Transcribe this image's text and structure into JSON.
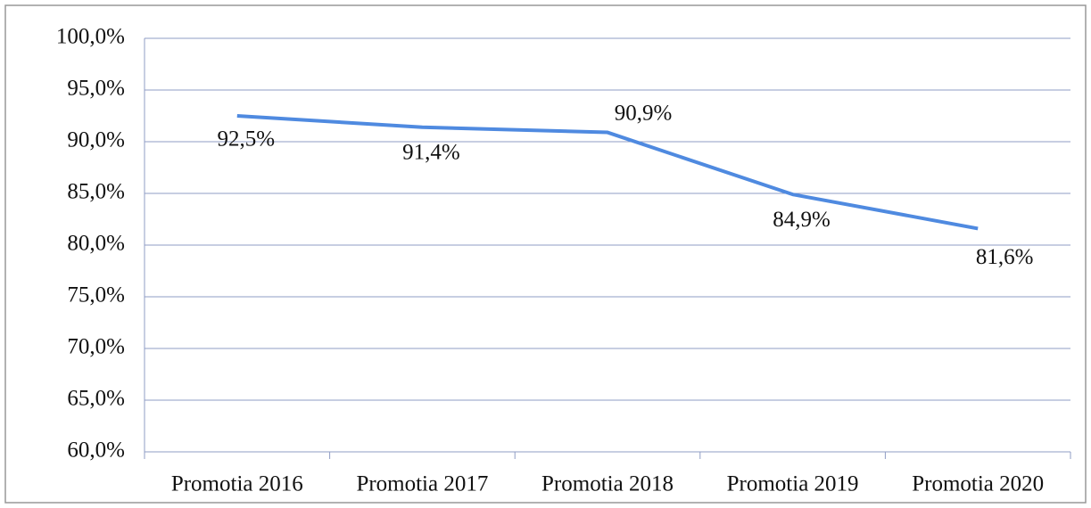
{
  "chart_data": {
    "type": "line",
    "categories": [
      "Promotia 2016",
      "Promotia 2017",
      "Promotia 2018",
      "Promotia 2019",
      "Promotia 2020"
    ],
    "values": [
      92.5,
      91.4,
      90.9,
      84.9,
      81.6
    ],
    "value_labels": [
      "92,5%",
      "91,4%",
      "90,9%",
      "84,9%",
      "81,6%"
    ],
    "color": "#4f8ae0",
    "ylim": [
      60,
      100
    ],
    "yticks": [
      {
        "value": 60,
        "label": "60,0%"
      },
      {
        "value": 65,
        "label": "65,0%"
      },
      {
        "value": 70,
        "label": "70,0%"
      },
      {
        "value": 75,
        "label": "75,0%"
      },
      {
        "value": 80,
        "label": "80,0%"
      },
      {
        "value": 85,
        "label": "85,0%"
      },
      {
        "value": 90,
        "label": "90,0%"
      },
      {
        "value": 95,
        "label": "95,0%"
      },
      {
        "value": 100,
        "label": "100,0%"
      }
    ],
    "grid": true
  }
}
